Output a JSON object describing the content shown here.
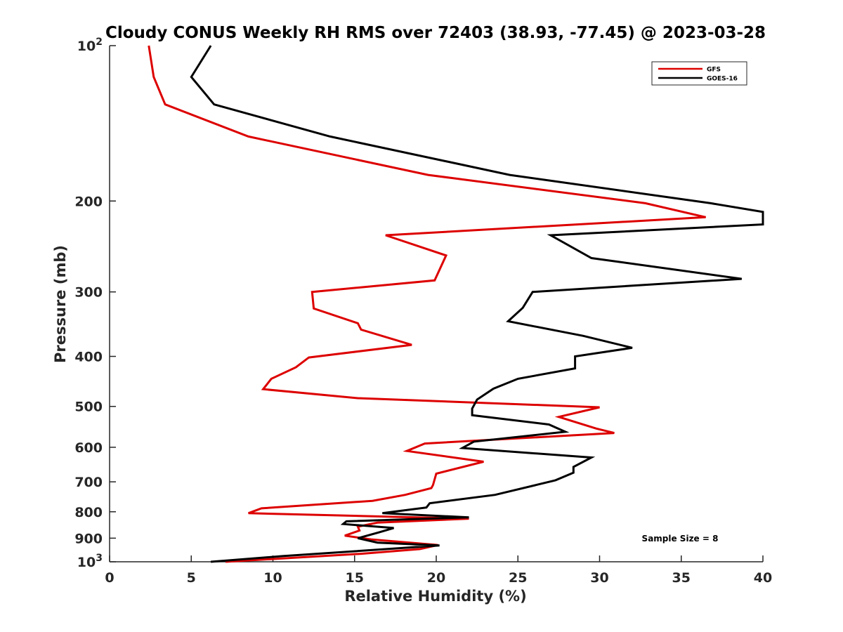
{
  "chart_data": {
    "type": "line",
    "title": "Cloudy CONUS Weekly RH RMS over 72403 (38.93, -77.45) @ 2023-03-28",
    "xlabel": "Relative Humidity (%)",
    "ylabel": "Pressure (mb)",
    "xlim": [
      0,
      40
    ],
    "ylim": [
      100,
      1000
    ],
    "y_scale": "log",
    "y_reversed": true,
    "x_ticks": [
      0,
      5,
      10,
      15,
      20,
      25,
      30,
      35,
      40
    ],
    "y_ticks": [
      {
        "value": 100,
        "label": "10",
        "sup": "2"
      },
      {
        "value": 200,
        "label": "200",
        "sup": ""
      },
      {
        "value": 300,
        "label": "300",
        "sup": ""
      },
      {
        "value": 400,
        "label": "400",
        "sup": ""
      },
      {
        "value": 500,
        "label": "500",
        "sup": ""
      },
      {
        "value": 600,
        "label": "600",
        "sup": ""
      },
      {
        "value": 700,
        "label": "700",
        "sup": ""
      },
      {
        "value": 800,
        "label": "800",
        "sup": ""
      },
      {
        "value": 900,
        "label": "900",
        "sup": ""
      },
      {
        "value": 1000,
        "label": "10",
        "sup": "3"
      }
    ],
    "grid": false,
    "legend_position": "top-right",
    "annotation": "Sample Size = 8",
    "series": [
      {
        "name": "GFS",
        "color": "#dd0000",
        "x": [
          2.4,
          2.7,
          3.4,
          8.5,
          19.5,
          32.8,
          36.5,
          16.9,
          20.6,
          19.9,
          12.4,
          12.5,
          15.2,
          15.4,
          18.5,
          12.2,
          11.4,
          9.9,
          9.4,
          15.2,
          30.0,
          27.5,
          29.8,
          30.9,
          19.3,
          18.2,
          22.9,
          20.0,
          19.8,
          19.7,
          18.1,
          16.1,
          9.3,
          8.5,
          22.0,
          16.4,
          15.2,
          15.3,
          14.4,
          16.0,
          20.1,
          19.0,
          15.4,
          7.1
        ],
        "y": [
          100,
          115,
          130,
          150,
          178,
          202,
          215,
          233,
          255,
          285,
          300,
          323,
          345,
          355,
          380,
          402,
          420,
          442,
          463,
          482,
          502,
          524,
          552,
          563,
          590,
          610,
          640,
          675,
          710,
          720,
          742,
          762,
          788,
          805,
          825,
          840,
          855,
          870,
          890,
          905,
          928,
          945,
          965,
          1000
        ]
      },
      {
        "name": "GOES-16",
        "color": "#000000",
        "x": [
          6.2,
          5.0,
          6.4,
          13.5,
          24.5,
          36.8,
          40.0,
          40.0,
          27.0,
          29.5,
          38.7,
          25.9,
          25.3,
          24.4,
          29.0,
          32.0,
          28.5,
          28.5,
          25.0,
          23.5,
          22.5,
          22.2,
          22.2,
          26.9,
          27.9,
          22.3,
          21.6,
          29.5,
          28.4,
          28.4,
          27.3,
          26.1,
          23.6,
          19.6,
          19.4,
          16.7,
          22.0,
          14.5,
          14.3,
          17.4,
          16.5,
          15.2,
          16.4,
          20.2,
          10.6,
          6.2
        ],
        "y": [
          100,
          115,
          130,
          150,
          178,
          202,
          210,
          222,
          233,
          258,
          283,
          300,
          322,
          342,
          365,
          385,
          400,
          422,
          442,
          462,
          485,
          505,
          520,
          542,
          560,
          585,
          602,
          628,
          655,
          672,
          695,
          710,
          742,
          770,
          785,
          805,
          820,
          835,
          845,
          860,
          877,
          900,
          918,
          930,
          975,
          1000
        ]
      }
    ]
  }
}
